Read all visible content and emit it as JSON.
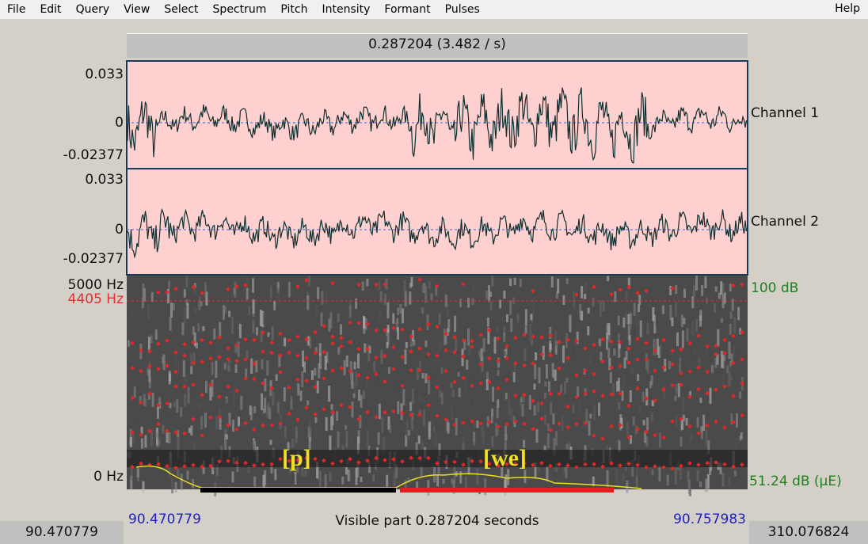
{
  "menu": {
    "items": [
      "File",
      "Edit",
      "Query",
      "View",
      "Select",
      "Spectrum",
      "Pitch",
      "Intensity",
      "Formant",
      "Pulses"
    ],
    "help": "Help"
  },
  "top_bar": {
    "text": "0.287204 (3.482 / s)"
  },
  "channels": [
    {
      "label": "Channel 1",
      "max": "0.033",
      "zero": "0",
      "min": "-0.02377"
    },
    {
      "label": "Channel 2",
      "max": "0.033",
      "zero": "0",
      "min": "-0.02377"
    }
  ],
  "spectrogram": {
    "top": "5000 Hz",
    "cursor": "4405 Hz",
    "bottom": "0 Hz",
    "intensity_top": "100 dB",
    "intensity_bottom": "51.24 dB (µE)"
  },
  "annotations": [
    "[p]",
    "[we]"
  ],
  "footer": {
    "start": "90.470779",
    "visible": "Visible part 0.287204 seconds",
    "end": "90.757983"
  },
  "status": {
    "left": "90.470779",
    "right": "310.076824"
  }
}
